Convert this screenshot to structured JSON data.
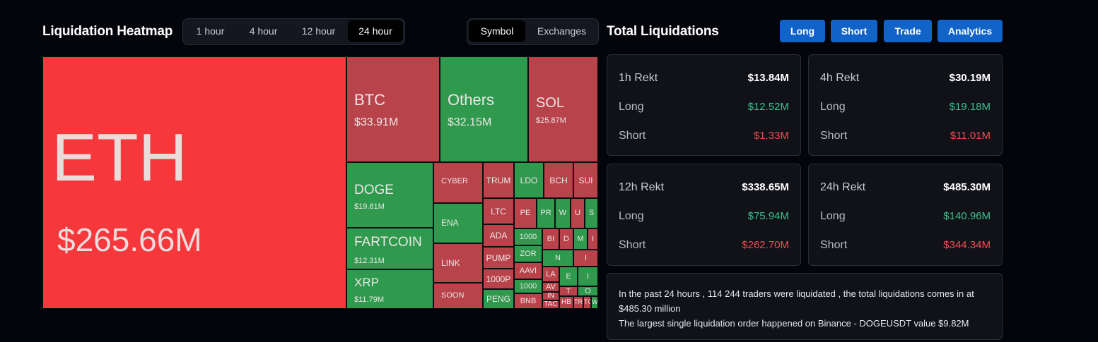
{
  "heatmap": {
    "title": "Liquidation Heatmap",
    "time_tabs": [
      "1 hour",
      "4 hour",
      "12 hour",
      "24 hour"
    ],
    "active_time_tab": "24 hour",
    "group_tabs": [
      "Symbol",
      "Exchanges"
    ],
    "active_group_tab": "Symbol",
    "tiles": [
      {
        "symbol": "ETH",
        "value": "$265.66M",
        "color": "#f6373c"
      },
      {
        "symbol": "BTC",
        "value": "$33.91M",
        "color": "#b9434a"
      },
      {
        "symbol": "Others",
        "value": "$32.15M",
        "color": "#2f9a4d"
      },
      {
        "symbol": "SOL",
        "value": "$25.87M",
        "color": "#b9434a"
      },
      {
        "symbol": "DOGE",
        "value": "$19.81M",
        "color": "#2f9a4d"
      },
      {
        "symbol": "FARTCOIN",
        "value": "$12.31M",
        "color": "#2f9a4d"
      },
      {
        "symbol": "XRP",
        "value": "$11.79M",
        "color": "#2f9a4d"
      },
      {
        "symbol": "CYBER"
      },
      {
        "symbol": "ENA"
      },
      {
        "symbol": "LINK"
      },
      {
        "symbol": "SOON"
      },
      {
        "symbol": "TRUM"
      },
      {
        "symbol": "LDO"
      },
      {
        "symbol": "BCH"
      },
      {
        "symbol": "SUI"
      },
      {
        "symbol": "LTC"
      },
      {
        "symbol": "PE"
      },
      {
        "symbol": "PR"
      },
      {
        "symbol": "W"
      },
      {
        "symbol": "U"
      },
      {
        "symbol": "S"
      },
      {
        "symbol": "ADA"
      },
      {
        "symbol": "1000"
      },
      {
        "symbol": "BI"
      },
      {
        "symbol": "D"
      },
      {
        "symbol": "M"
      },
      {
        "symbol": "I"
      },
      {
        "symbol": "PUMP"
      },
      {
        "symbol": "ZOR"
      },
      {
        "symbol": "N"
      },
      {
        "symbol": "I"
      },
      {
        "symbol": "1000P"
      },
      {
        "symbol": "AAVI"
      },
      {
        "symbol": "LA"
      },
      {
        "symbol": "AV"
      },
      {
        "symbol": "E"
      },
      {
        "symbol": "I"
      },
      {
        "symbol": "1000"
      },
      {
        "symbol": "IN"
      },
      {
        "symbol": "T"
      },
      {
        "symbol": "O"
      },
      {
        "symbol": "PENG"
      },
      {
        "symbol": "BNB"
      },
      {
        "symbol": "TAC"
      },
      {
        "symbol": "HB"
      },
      {
        "symbol": "TR"
      },
      {
        "symbol": "TC"
      },
      {
        "symbol": "W"
      }
    ]
  },
  "totals": {
    "title": "Total Liquidations",
    "nav_buttons": [
      "Long",
      "Short",
      "Trade",
      "Analytics"
    ],
    "row_labels": {
      "long": "Long",
      "short": "Short"
    },
    "cards": [
      {
        "label": "1h Rekt",
        "total": "$13.84M",
        "long": "$12.52M",
        "short": "$1.33M"
      },
      {
        "label": "4h Rekt",
        "total": "$30.19M",
        "long": "$19.18M",
        "short": "$11.01M"
      },
      {
        "label": "12h Rekt",
        "total": "$338.65M",
        "long": "$75.94M",
        "short": "$262.70M"
      },
      {
        "label": "24h Rekt",
        "total": "$485.30M",
        "long": "$140.96M",
        "short": "$344.34M"
      }
    ],
    "summary_line1": "In the past 24 hours , 114 244 traders were liquidated , the total liquidations comes in at $485.30 million",
    "summary_line2": "The largest single liquidation order happened on Binance - DOGEUSDT value $9.82M"
  },
  "colors": {
    "long": "#3fbf8e",
    "short": "#ef4c55",
    "accent": "#1163c8",
    "tile_red": "#b9434a",
    "tile_bright_red": "#f6373c",
    "tile_green": "#2f9a4d"
  }
}
